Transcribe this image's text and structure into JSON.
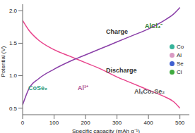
{
  "chart_data": {
    "type": "line",
    "x_label": "Specific capacity (mAh g⁻¹)",
    "y_label": "Potential (V)",
    "x": [
      0,
      20,
      50,
      100,
      150,
      200,
      250,
      300,
      350,
      400,
      450,
      480,
      500
    ],
    "series": [
      {
        "name": "Discharge",
        "color": "#e8448c",
        "values": [
          1.85,
          1.7,
          1.55,
          1.4,
          1.3,
          1.2,
          1.1,
          0.98,
          0.88,
          0.78,
          0.68,
          0.6,
          0.5
        ]
      },
      {
        "name": "Charge",
        "color": "#8a3fa8",
        "values": [
          0.55,
          0.8,
          0.95,
          1.1,
          1.22,
          1.32,
          1.42,
          1.52,
          1.62,
          1.72,
          1.85,
          1.95,
          2.05
        ]
      }
    ],
    "xlim": [
      0,
      530
    ],
    "xticks": [
      0,
      100,
      200,
      300,
      400,
      500
    ],
    "ylim": [
      0.4,
      2.1
    ],
    "yticks": [
      {
        "value": 0.5,
        "label": "0.5"
      },
      {
        "value": 1,
        "label": "1.0"
      },
      {
        "value": 1.5,
        "label": "1.5"
      },
      {
        "value": 2,
        "label": "2.0"
      }
    ],
    "annotations": [
      "Charge",
      "Discharge",
      "AlCl₄⁻",
      "CoSe₂",
      "Al³⁺",
      "AlₓCo₂Se₂"
    ],
    "element_legend": [
      {
        "name": "Co",
        "color": "#36b39a"
      },
      {
        "name": "Al",
        "color": "#d99ac4"
      },
      {
        "name": "Se",
        "color": "#3f5fd0"
      },
      {
        "name": "Cl",
        "color": "#3faa3f"
      }
    ]
  }
}
